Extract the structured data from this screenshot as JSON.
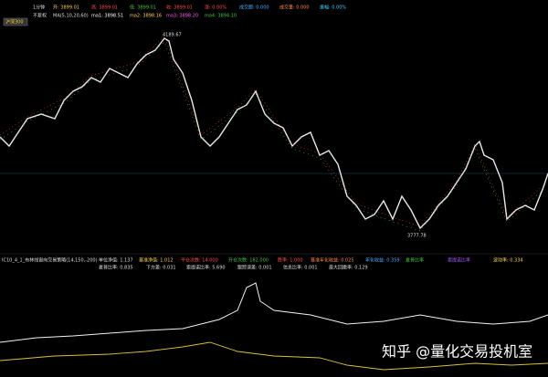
{
  "header": {
    "title": "沪深300",
    "period": "1分钟",
    "open": "开: 3899.01",
    "high": "高: 3899.01",
    "low": "低: 3899.01",
    "close": "收: 3899.01",
    "change": "涨: 0.00%",
    "amount": "成交额: 0.000",
    "volume": "成交量: 0.000",
    "amplitude": "振幅: 0.00%"
  },
  "ma_line": {
    "adjust": "不复权",
    "ma_params": "MA(5,10,20,60)",
    "ma1": "ma1: 3898.51",
    "ma2": "ma2: 3898.16",
    "ma3": "ma3: 3898.20",
    "ma4": "ma4: 3894.10"
  },
  "price_panel": {
    "high_label": "4189.67",
    "low_label": "3777.78"
  },
  "strategy": {
    "name": "IC10_4_1_布林线窗向交易策略(14,150,-200)",
    "row1": [
      "单位净值: 1.137",
      "基准净值: 1.012",
      "平仓次数: 14.000",
      "开仓次数: 182.000",
      "胜率: 1.000",
      "基准年化收益: 0.025",
      "年化收益: 0.359",
      "夏普比率",
      "索提诺比率",
      "波动率: 0.334"
    ],
    "row2": [
      "夏普比率: 0.835",
      "下方差: 0.031",
      "索提诺比率: 5.690",
      "跟踪误差: 0.001",
      "信息比率: 0.001",
      "最大回撤率: 0.129"
    ]
  },
  "watermark": "知乎 @量化交易投机室"
}
